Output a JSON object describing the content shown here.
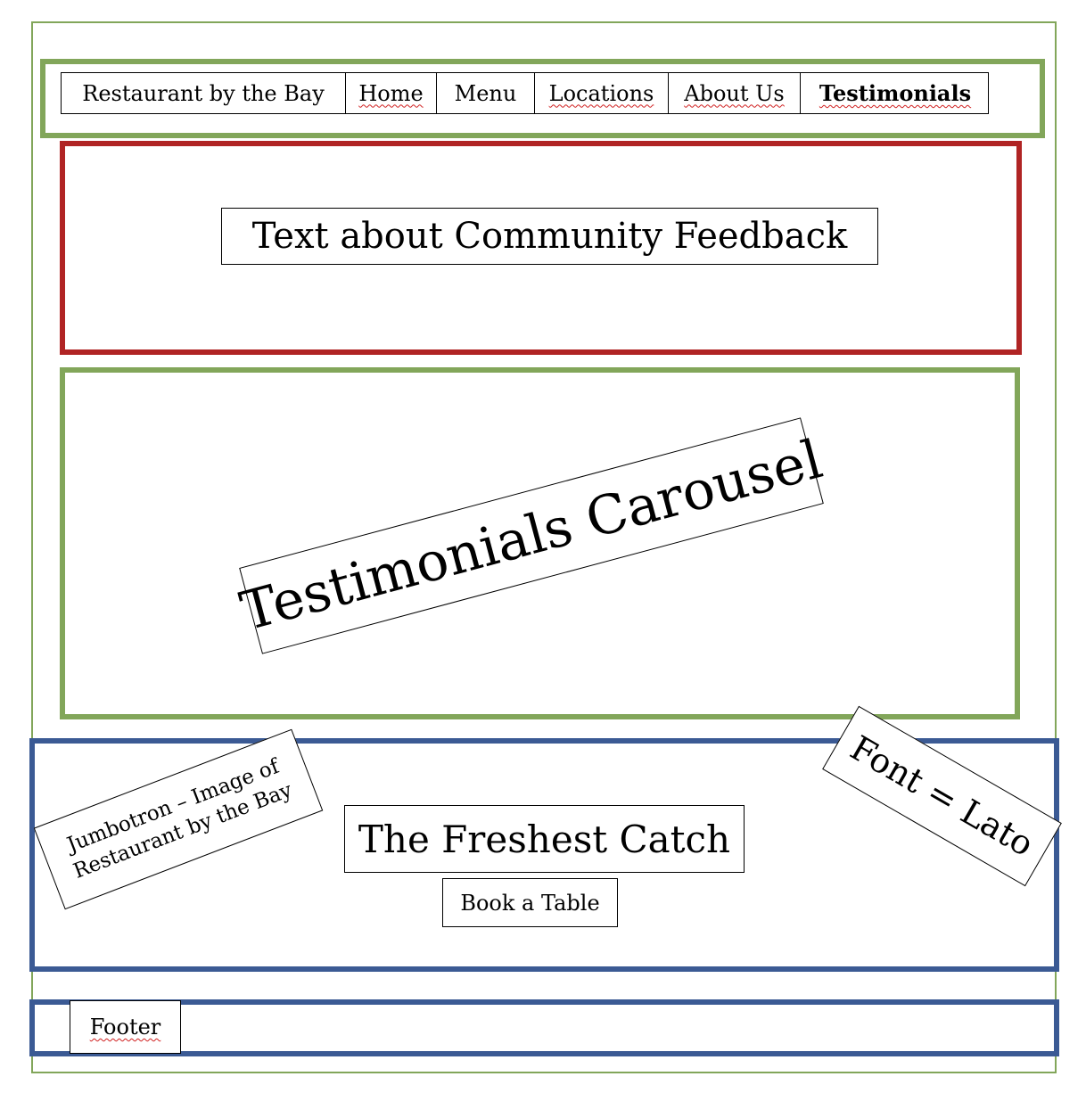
{
  "nav": {
    "brand": "Restaurant by the Bay",
    "items": [
      "Home",
      "Menu",
      "Locations",
      "About Us",
      "Testimonials"
    ]
  },
  "feedback": {
    "text": "Text about Community Feedback"
  },
  "carousel": {
    "text": "Testimonials Carousel"
  },
  "jumbotron": {
    "image_note_line1": "Jumbotron – Image of",
    "image_note_line2": "Restaurant  by the Bay",
    "headline": "The Freshest Catch",
    "button": "Book a Table",
    "font_note": "Font = Lato"
  },
  "footer": {
    "label": "Footer"
  },
  "colors": {
    "green": "#82a65a",
    "red": "#b02424",
    "blue": "#3b5a94",
    "spell_underline": "#d02020"
  }
}
